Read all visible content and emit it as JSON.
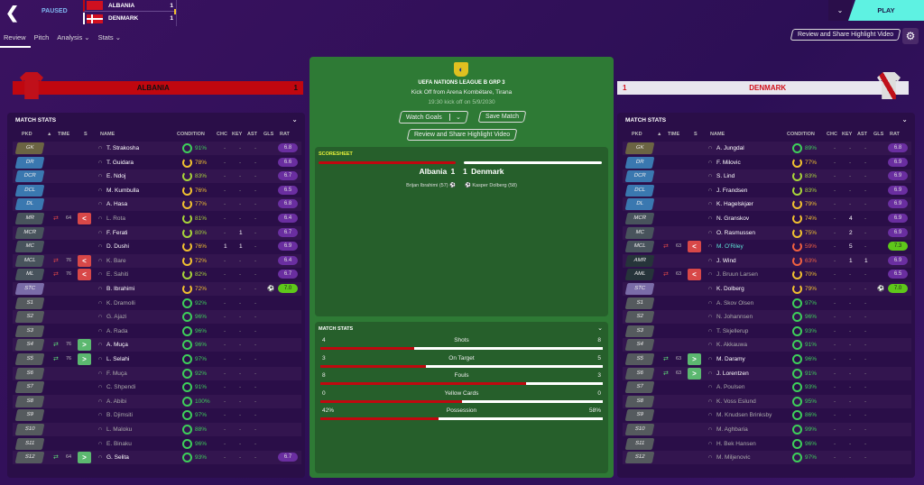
{
  "header": {
    "status": "PAUSED",
    "home": {
      "name": "ALBANIA",
      "goals": "1"
    },
    "away": {
      "name": "DENMARK",
      "goals": "1"
    },
    "play": "PLAY",
    "review_btn": "Review and Share Highlight Video"
  },
  "tabs": [
    "Review",
    "Pitch",
    "Analysis ⌄",
    "Stats ⌄"
  ],
  "home_bar": {
    "name": "ALBANIA",
    "score": "1",
    "color": "#c0070f"
  },
  "away_bar": {
    "name": "DENMARK",
    "score": "1",
    "color": "#e8e6ee"
  },
  "columns": [
    "PKD",
    "▲",
    "TIME",
    "S",
    "NAME",
    "CONDITION",
    "CHC",
    "KEY",
    "AST",
    "GLS",
    "RAT"
  ],
  "panel_title": "MATCH STATS",
  "home_players": [
    [
      "GK",
      "",
      "",
      "",
      "T. Strakosha",
      "91%",
      "-",
      "-",
      "-",
      "",
      "6.8"
    ],
    [
      "DR",
      "",
      "",
      "",
      "T. Guidara",
      "78%",
      "-",
      "-",
      "-",
      "",
      "6.6"
    ],
    [
      "DCR",
      "",
      "",
      "",
      "E. Ndoj",
      "83%",
      "-",
      "-",
      "-",
      "",
      "6.7"
    ],
    [
      "DCL",
      "",
      "",
      "",
      "M. Kumbulla",
      "76%",
      "-",
      "-",
      "-",
      "",
      "6.5"
    ],
    [
      "DL",
      "",
      "",
      "",
      "A. Hasa",
      "77%",
      "-",
      "-",
      "-",
      "",
      "6.8"
    ],
    [
      "MR",
      "off",
      "64",
      "<",
      "L. Rota",
      "81%",
      "-",
      "-",
      "-",
      "",
      "6.4"
    ],
    [
      "MCR",
      "",
      "",
      "",
      "F. Ferati",
      "80%",
      "-",
      "1",
      "-",
      "",
      "6.7"
    ],
    [
      "MC",
      "",
      "",
      "",
      "D. Dushi",
      "76%",
      "1",
      "1",
      "-",
      "",
      "6.9"
    ],
    [
      "MCL",
      "off",
      "76",
      "<",
      "K. Bare",
      "72%",
      "-",
      "-",
      "-",
      "",
      "6.4"
    ],
    [
      "ML",
      "off",
      "76",
      "<",
      "E. Sahiti",
      "82%",
      "-",
      "-",
      "-",
      "",
      "6.7"
    ],
    [
      "STC",
      "",
      "",
      "",
      "B. Ibrahimi",
      "72%",
      "-",
      "-",
      "-",
      "⚽",
      "7.0"
    ],
    [
      "S1",
      "",
      "",
      "",
      "K. Dramolli",
      "92%",
      "-",
      "-",
      "-",
      "",
      ""
    ],
    [
      "S2",
      "",
      "",
      "",
      "G. Ajazi",
      "96%",
      "-",
      "-",
      "-",
      "",
      ""
    ],
    [
      "S3",
      "",
      "",
      "",
      "A. Rada",
      "96%",
      "-",
      "-",
      "-",
      "",
      ""
    ],
    [
      "S4",
      "on",
      "76",
      ">",
      "A. Muça",
      "96%",
      "-",
      "-",
      "-",
      "",
      ""
    ],
    [
      "S5",
      "on",
      "76",
      ">",
      "L. Selahi",
      "97%",
      "-",
      "-",
      "-",
      "",
      ""
    ],
    [
      "S6",
      "",
      "",
      "",
      "F. Muça",
      "92%",
      "-",
      "-",
      "-",
      "",
      ""
    ],
    [
      "S7",
      "",
      "",
      "",
      "C. Shpendi",
      "91%",
      "-",
      "-",
      "-",
      "",
      ""
    ],
    [
      "S8",
      "",
      "",
      "",
      "A. Abibi",
      "100%",
      "-",
      "-",
      "-",
      "",
      ""
    ],
    [
      "S9",
      "",
      "",
      "",
      "B. Djimsiti",
      "97%",
      "-",
      "-",
      "-",
      "",
      ""
    ],
    [
      "S10",
      "",
      "",
      "",
      "L. Maloku",
      "88%",
      "-",
      "-",
      "-",
      "",
      ""
    ],
    [
      "S11",
      "",
      "",
      "",
      "E. Binaku",
      "96%",
      "-",
      "-",
      "-",
      "",
      ""
    ],
    [
      "S12",
      "on",
      "64",
      ">",
      "G. Selita",
      "93%",
      "-",
      "-",
      "-",
      "",
      "6.7"
    ]
  ],
  "away_players": [
    [
      "GK",
      "",
      "",
      "",
      "A. Jungdal",
      "89%",
      "-",
      "-",
      "-",
      "",
      "6.8"
    ],
    [
      "DR",
      "",
      "",
      "",
      "F. Milovic",
      "77%",
      "-",
      "-",
      "-",
      "",
      "6.9"
    ],
    [
      "DCR",
      "",
      "",
      "",
      "S. Lind",
      "83%",
      "-",
      "-",
      "-",
      "",
      "6.9"
    ],
    [
      "DCL",
      "",
      "",
      "",
      "J. Frandsen",
      "83%",
      "-",
      "-",
      "-",
      "",
      "6.9"
    ],
    [
      "DL",
      "",
      "",
      "",
      "K. Hagelskjær",
      "79%",
      "-",
      "-",
      "-",
      "",
      "6.9"
    ],
    [
      "MCR",
      "",
      "",
      "",
      "N. Granskov",
      "74%",
      "-",
      "4",
      "-",
      "",
      "6.9"
    ],
    [
      "MC",
      "",
      "",
      "",
      "O. Rasmussen",
      "75%",
      "-",
      "2",
      "-",
      "",
      "6.9"
    ],
    [
      "MCL",
      "off",
      "63",
      "<",
      "M. O'Riley",
      "59%",
      "-",
      "5",
      "-",
      "",
      "7.3"
    ],
    [
      "AMR",
      "",
      "",
      "",
      "J. Wind",
      "63%",
      "-",
      "1",
      "1",
      "",
      "6.9"
    ],
    [
      "AML",
      "off",
      "63",
      "<",
      "J. Bruun Larsen",
      "70%",
      "-",
      "-",
      "-",
      "",
      "6.5"
    ],
    [
      "STC",
      "",
      "",
      "",
      "K. Dolberg",
      "79%",
      "-",
      "-",
      "-",
      "⚽",
      "7.0"
    ],
    [
      "S1",
      "",
      "",
      "",
      "A. Skov Olsen",
      "97%",
      "-",
      "-",
      "-",
      "",
      ""
    ],
    [
      "S2",
      "",
      "",
      "",
      "N. Johannsen",
      "96%",
      "-",
      "-",
      "-",
      "",
      ""
    ],
    [
      "S3",
      "",
      "",
      "",
      "T. Skjellerup",
      "93%",
      "-",
      "-",
      "-",
      "",
      ""
    ],
    [
      "S4",
      "",
      "",
      "",
      "K. Akkauwa",
      "91%",
      "-",
      "-",
      "-",
      "",
      ""
    ],
    [
      "S5",
      "on",
      "63",
      ">",
      "M. Daramy",
      "96%",
      "-",
      "-",
      "-",
      "",
      ""
    ],
    [
      "S6",
      "on",
      "63",
      ">",
      "J. Lorentzen",
      "91%",
      "-",
      "-",
      "-",
      "",
      ""
    ],
    [
      "S7",
      "",
      "",
      "",
      "A. Poulsen",
      "93%",
      "-",
      "-",
      "-",
      "",
      ""
    ],
    [
      "S8",
      "",
      "",
      "",
      "K. Voss Eslund",
      "95%",
      "-",
      "-",
      "-",
      "",
      ""
    ],
    [
      "S9",
      "",
      "",
      "",
      "M. Knudsen Brinksby",
      "86%",
      "-",
      "-",
      "-",
      "",
      ""
    ],
    [
      "S10",
      "",
      "",
      "",
      "M. Aghbaria",
      "99%",
      "-",
      "-",
      "-",
      "",
      ""
    ],
    [
      "S11",
      "",
      "",
      "",
      "H. Bek Hansen",
      "96%",
      "-",
      "-",
      "-",
      "",
      ""
    ],
    [
      "S12",
      "",
      "",
      "",
      "M. Miljenovic",
      "97%",
      "-",
      "-",
      "-",
      "",
      ""
    ]
  ],
  "center": {
    "competition": "UEFA NATIONS LEAGUE B GRP 3",
    "venue": "Kick Off from Arena Kombëtare, Tirana",
    "kickoff": "19:30 kick off on 5/9/2030",
    "watch_goals": "Watch Goals",
    "save_match": "Save Match",
    "review": "Review and Share Highlight Video",
    "scoresheet_title": "SCORESHEET",
    "home": "Albania",
    "home_goals": "1",
    "away_goals": "1",
    "away": "Denmark",
    "home_scorer": "Brijan Ibrahimi (57)",
    "away_scorer": "Kasper Dolberg (58)",
    "stats_title": "MATCH STATS",
    "stats": [
      {
        "label": "Shots",
        "home": "4",
        "away": "8",
        "share": 0.333
      },
      {
        "label": "On Target",
        "home": "3",
        "away": "5",
        "share": 0.375
      },
      {
        "label": "Fouls",
        "home": "8",
        "away": "3",
        "share": 0.727
      },
      {
        "label": "Yellow Cards",
        "home": "0",
        "away": "0",
        "share": 0.5
      },
      {
        "label": "Possession",
        "home": "42%",
        "away": "58%",
        "share": 0.42
      }
    ]
  }
}
